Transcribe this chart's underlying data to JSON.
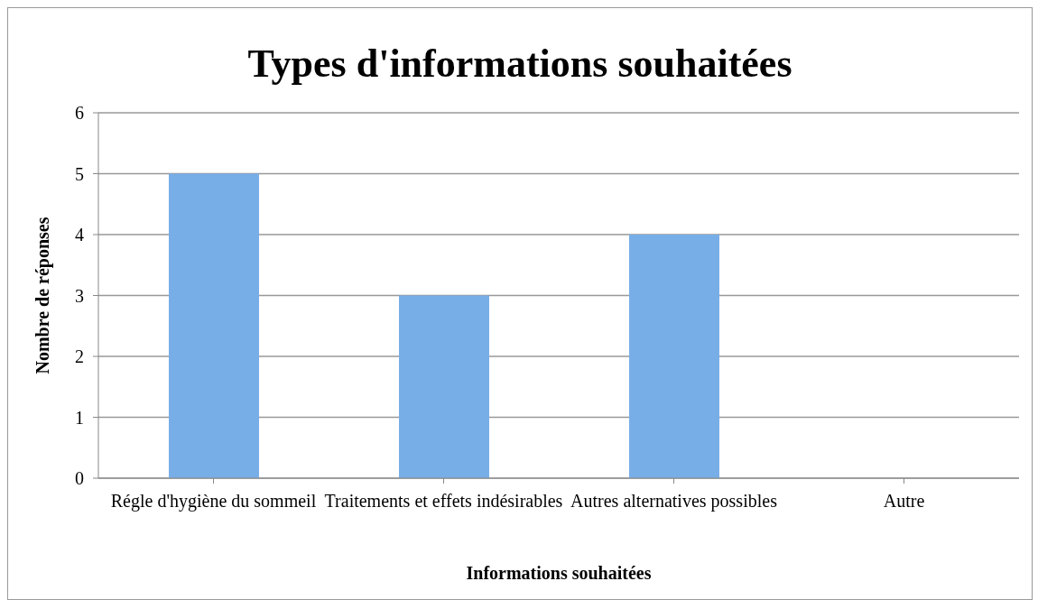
{
  "chart_data": {
    "type": "bar",
    "title": "Types d'informations souhaitées",
    "xlabel": "Informations souhaitées",
    "ylabel": "Nombre de réponses",
    "categories": [
      "Régle d'hygiène du sommeil",
      "Traitements et effets indésirables",
      "Autres alternatives possibles",
      "Autre"
    ],
    "values": [
      5,
      3,
      4,
      0
    ],
    "color": "#78aee8",
    "ylim": [
      0,
      6
    ],
    "yticks": [
      0,
      1,
      2,
      3,
      4,
      5,
      6
    ],
    "grid": "y",
    "legend": false
  }
}
